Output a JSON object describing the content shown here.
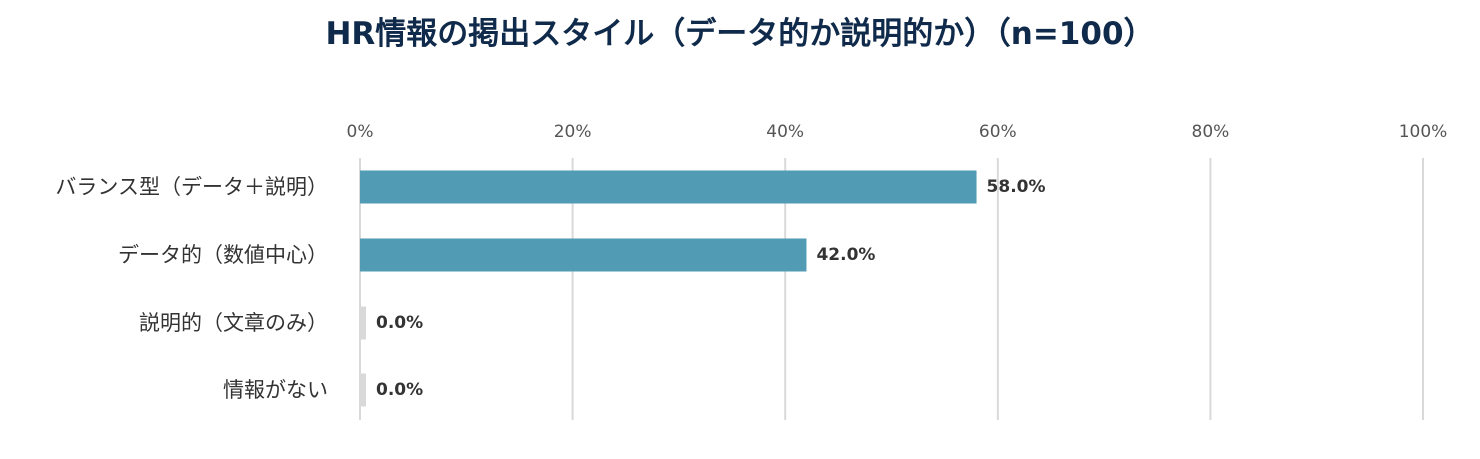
{
  "chart_data": {
    "type": "bar",
    "orientation": "horizontal",
    "title": "HR情報の掲出スタイル（データ的か説明的か）（n=100）",
    "categories": [
      "バランス型（データ＋説明）",
      "データ的（数値中心）",
      "説明的（文章のみ）",
      "情報がない"
    ],
    "values": [
      58.0,
      42.0,
      0.0,
      0.0
    ],
    "value_labels": [
      "58.0%",
      "42.0%",
      "0.0%",
      "0.0%"
    ],
    "xlim": [
      0,
      100
    ],
    "x_ticks": [
      0,
      20,
      40,
      60,
      80,
      100
    ],
    "x_tick_labels": [
      "0%",
      "20%",
      "40%",
      "60%",
      "80%",
      "100%"
    ],
    "x_axis_position": "top",
    "xlabel": "",
    "ylabel": "",
    "grid": true,
    "legend": "none",
    "colors": {
      "bar": "#529bb5",
      "zero_bar": "#d9d9d9",
      "grid": "#d9d9d9",
      "title": "#0f2a4a"
    }
  }
}
